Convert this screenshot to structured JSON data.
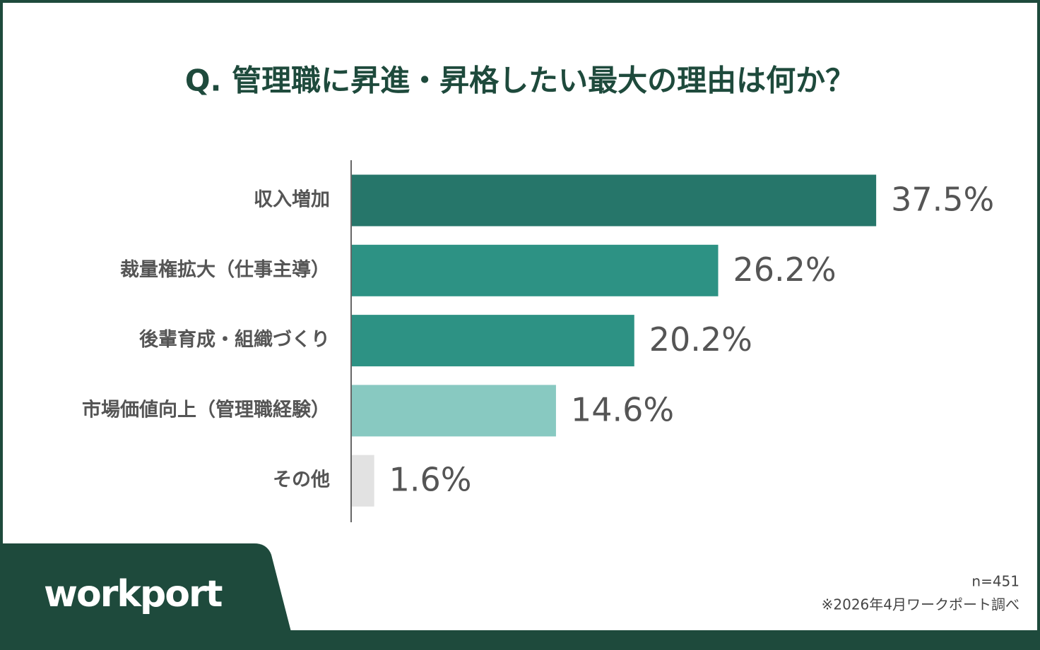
{
  "chart_data": {
    "type": "hbar",
    "title": "Q. 管理職に昇進・昇格したい最大の理由は何か？",
    "categories": [
      "収入増加",
      "裁量権拡大（仕事主導）",
      "後輩育成・組織づくり",
      "市場価値向上（管理職経験）",
      "その他"
    ],
    "values": [
      37.5,
      26.2,
      20.2,
      14.6,
      1.6
    ],
    "value_labels": [
      "37.5%",
      "26.2%",
      "20.2%",
      "14.6%",
      "1.6%"
    ],
    "colors": [
      "#26766a",
      "#2d9284",
      "#2d9284",
      "#88c9c1",
      "#e2e2e2"
    ]
  },
  "footer": {
    "logo": "workport",
    "sample": "n=451",
    "source": "※2026年4月ワークポート調べ"
  }
}
